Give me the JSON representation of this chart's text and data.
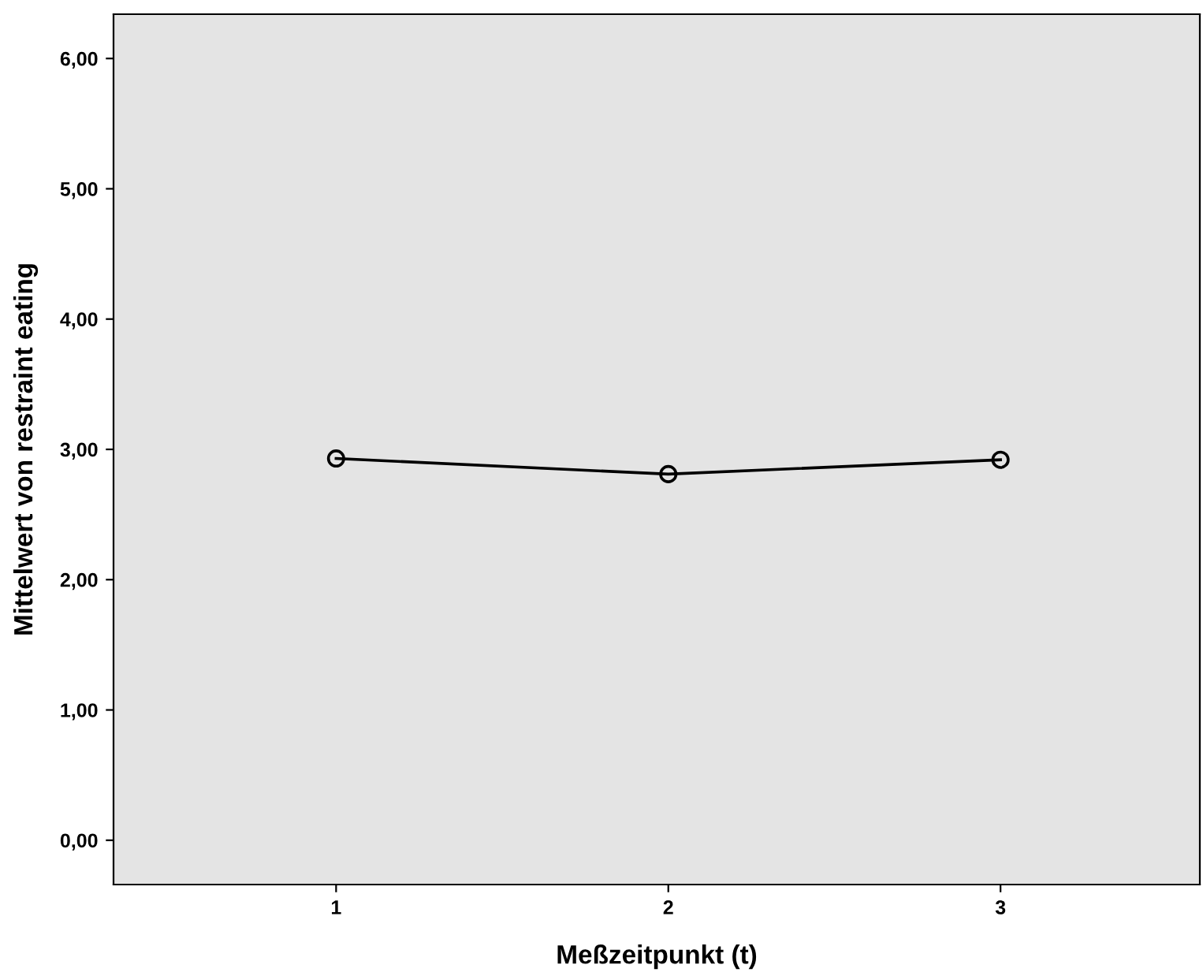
{
  "chart_data": {
    "type": "line",
    "xlabel": "Meßzeitpunkt (t)",
    "ylabel": "Mittelwert von restraint eating",
    "x": [
      1,
      2,
      3
    ],
    "series": [
      {
        "color": "#000000",
        "values": [
          2.93,
          2.81,
          2.92
        ]
      }
    ],
    "marker": "circle",
    "line_style": "solid",
    "xlim": [
      0.33,
      3.6
    ],
    "xticks": [
      1,
      2,
      3
    ],
    "ylim": [
      -0.34,
      6.34
    ],
    "yticks": [
      {
        "value": 0,
        "label": "0,00"
      },
      {
        "value": 1,
        "label": "1,00"
      },
      {
        "value": 2,
        "label": "2,00"
      },
      {
        "value": 3,
        "label": "3,00"
      },
      {
        "value": 4,
        "label": "4,00"
      },
      {
        "value": 5,
        "label": "5,00"
      },
      {
        "value": 6,
        "label": "6,00"
      }
    ],
    "grid": false
  }
}
